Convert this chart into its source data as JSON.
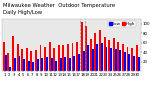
{
  "title": "Milwaukee Weather  Outdoor Temperature",
  "subtitle": "Daily High/Low",
  "days": [
    1,
    2,
    3,
    4,
    5,
    6,
    7,
    8,
    9,
    10,
    11,
    12,
    13,
    14,
    15,
    16,
    17,
    18,
    19,
    20,
    21,
    22,
    23,
    24,
    25,
    26,
    27,
    28,
    29,
    30
  ],
  "highs": [
    62,
    38,
    75,
    58,
    48,
    50,
    42,
    44,
    55,
    52,
    62,
    50,
    55,
    55,
    58,
    60,
    62,
    105,
    95,
    68,
    80,
    88,
    72,
    65,
    70,
    62,
    58,
    52,
    50,
    55
  ],
  "lows": [
    35,
    10,
    28,
    32,
    25,
    22,
    20,
    25,
    28,
    30,
    28,
    22,
    28,
    30,
    28,
    32,
    36,
    42,
    55,
    48,
    58,
    60,
    52,
    50,
    48,
    45,
    40,
    36,
    33,
    30
  ],
  "high_color": "#ff0000",
  "low_color": "#0000ff",
  "bg_color": "#ffffff",
  "plot_bg": "#e8e8e8",
  "dashed_line_x": [
    17.5,
    18.5
  ],
  "ylim": [
    0,
    110
  ],
  "yticks": [
    20,
    40,
    60,
    80,
    100
  ],
  "bar_width": 0.42,
  "title_fontsize": 3.8,
  "tick_fontsize": 2.8,
  "legend_fontsize": 3.0
}
